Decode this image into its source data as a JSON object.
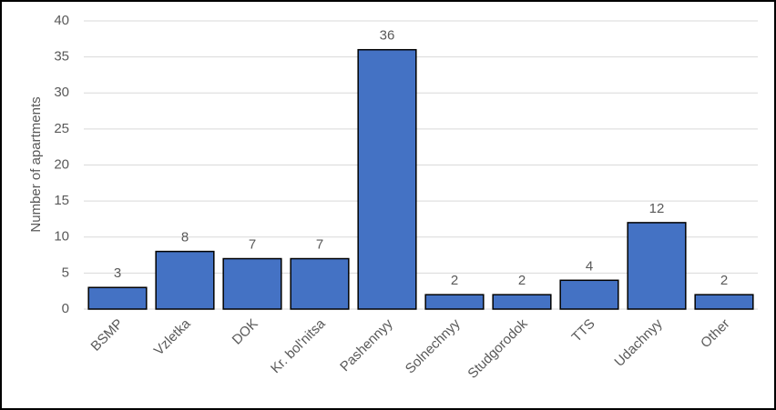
{
  "chart_data": {
    "type": "bar",
    "y_label": "Number of apartments",
    "categories": [
      "BSMP",
      "Vzletka",
      "DOK",
      "Kr. bol'nitsa",
      "Pashennyy",
      "Solnechnyy",
      "Studgorodok",
      "TTS",
      "Udachnyy",
      "Other"
    ],
    "values": [
      3,
      8,
      7,
      7,
      36,
      2,
      2,
      4,
      12,
      2
    ],
    "color": "#4472c4",
    "ylim": [
      0,
      40
    ],
    "yticks": [
      0,
      5,
      10,
      15,
      20,
      25,
      30,
      35,
      40
    ],
    "grid": true
  }
}
